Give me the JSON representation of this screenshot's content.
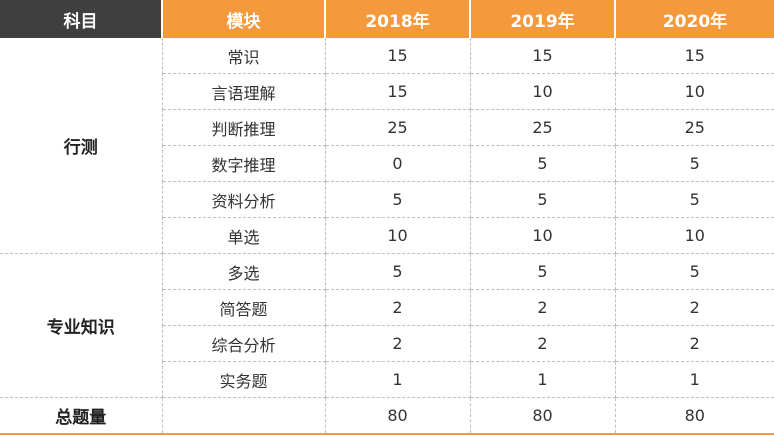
{
  "header": {
    "subject": "科目",
    "module": "模块",
    "y2018": "2018年",
    "y2019": "2019年",
    "y2020": "2020年"
  },
  "groups": [
    {
      "name": "行测",
      "rows": [
        {
          "module": "常识",
          "y2018": "15",
          "y2019": "15",
          "y2020": "15"
        },
        {
          "module": "言语理解",
          "y2018": "15",
          "y2019": "10",
          "y2020": "10"
        },
        {
          "module": "判断推理",
          "y2018": "25",
          "y2019": "25",
          "y2020": "25"
        },
        {
          "module": "数字推理",
          "y2018": "0",
          "y2019": "5",
          "y2020": "5"
        },
        {
          "module": "资料分析",
          "y2018": "5",
          "y2019": "5",
          "y2020": "5"
        },
        {
          "module": "单选",
          "y2018": "10",
          "y2019": "10",
          "y2020": "10"
        }
      ]
    },
    {
      "name": "专业知识",
      "rows": [
        {
          "module": "多选",
          "y2018": "5",
          "y2019": "5",
          "y2020": "5"
        },
        {
          "module": "简答题",
          "y2018": "2",
          "y2019": "2",
          "y2020": "2"
        },
        {
          "module": "综合分析",
          "y2018": "2",
          "y2019": "2",
          "y2020": "2"
        },
        {
          "module": "实务题",
          "y2018": "1",
          "y2019": "1",
          "y2020": "1"
        }
      ]
    }
  ],
  "total": {
    "label": "总题量",
    "module": "",
    "y2018": "80",
    "y2019": "80",
    "y2020": "80"
  }
}
